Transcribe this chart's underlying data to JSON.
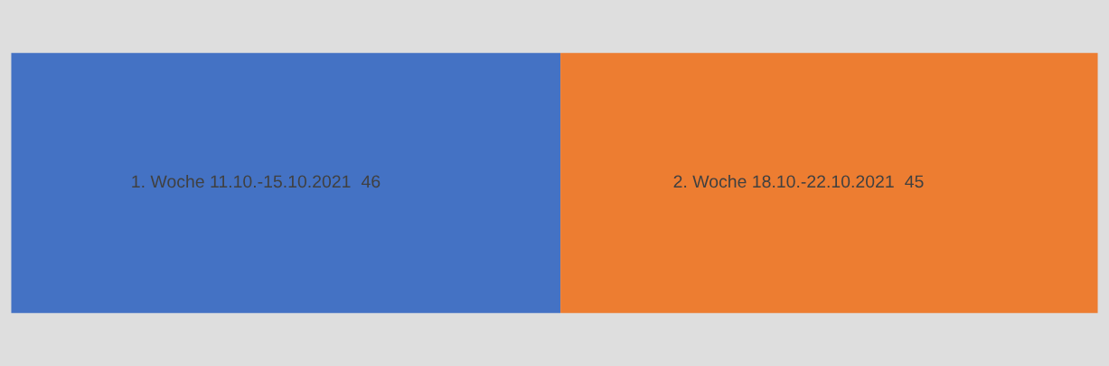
{
  "chart_data": {
    "type": "bar",
    "orientation": "horizontal",
    "stacked": true,
    "data_labels": true,
    "categories": [
      null
    ],
    "series": [
      {
        "name": "1. Woche 11.10.-15.10.2021",
        "color": "#4472c4",
        "values": [
          46
        ]
      },
      {
        "name": "2. Woche 18.10.-22.10.2021",
        "color": "#ed7d31",
        "values": [
          45
        ]
      }
    ]
  }
}
